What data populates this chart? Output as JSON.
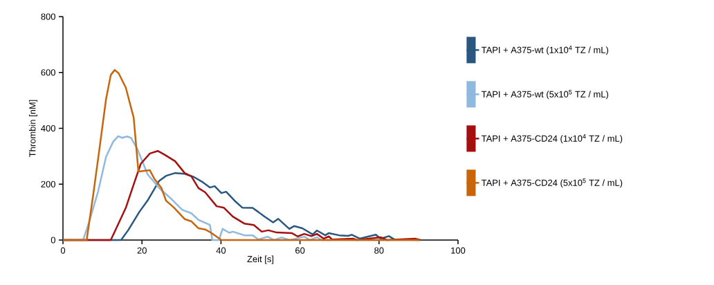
{
  "chart_data": {
    "type": "line",
    "xlabel": "Zeit [s]",
    "ylabel": "Thrombin [nM]",
    "xlim": [
      0,
      100
    ],
    "ylim": [
      0,
      800
    ],
    "xticks": [
      0,
      20,
      40,
      60,
      80,
      100
    ],
    "yticks": [
      0,
      200,
      400,
      600,
      800
    ],
    "legend": "right",
    "line_style": "solid",
    "series": [
      {
        "name": "TAPI + A375-wt (1x10$^{4}$ TZ / mL)",
        "color": "#2a5680",
        "x": [
          0,
          14.7,
          16.5,
          19.3,
          21.4,
          24.3,
          26.1,
          28.4,
          30.8,
          33.1,
          35.4,
          37.2,
          38.4,
          40.1,
          41.3,
          43.5,
          45.4,
          48,
          49.5,
          51,
          53.2,
          54.5,
          57.3,
          58.5,
          60.6,
          63.2,
          64.3,
          66.4,
          67.3,
          69.9,
          72.2,
          73.1,
          75.1,
          79.2,
          80.4,
          82.5,
          83.9,
          90.4
        ],
        "values": [
          0,
          0,
          35,
          100,
          141,
          211,
          230,
          240,
          237,
          226,
          207,
          188,
          193,
          168,
          173,
          140,
          116,
          115,
          100,
          84,
          63,
          76,
          40,
          50,
          42,
          20,
          34,
          17,
          25,
          17,
          15,
          19,
          5,
          19,
          5,
          14,
          2,
          0
        ]
      },
      {
        "name": "TAPI + A375-wt (5x10$^{5}$ TZ / mL)",
        "color": "#8fb9de",
        "x": [
          0,
          5.1,
          6.5,
          8.9,
          10.9,
          12.7,
          14,
          15,
          16.2,
          17.2,
          18.8,
          21.4,
          24.3,
          27.3,
          30.2,
          32.5,
          34.3,
          37.2,
          37.8,
          39.5,
          40.4,
          42.1,
          43,
          45.9,
          48,
          49.5,
          51.8,
          53.5,
          55.3,
          57.5,
          61.1,
          62.5,
          64.3,
          65.5,
          90.4
        ],
        "values": [
          0,
          0,
          59,
          174,
          298,
          352,
          372,
          366,
          371,
          366,
          327,
          236,
          187,
          149,
          108,
          96,
          72,
          54,
          0,
          0,
          40,
          26,
          30,
          17,
          17,
          2,
          12,
          0,
          9,
          0,
          12,
          0,
          10,
          0,
          0
        ]
      },
      {
        "name": "TAPI + A375-CD24 (1x10$^{4}$ TZ / mL)",
        "color": "#a50f0f",
        "x": [
          0,
          12.1,
          13.5,
          15.9,
          17.9,
          19.7,
          22,
          24,
          25.8,
          28.4,
          30.8,
          32.5,
          34.3,
          36,
          38.9,
          40.7,
          43,
          45.9,
          48.3,
          50.3,
          52,
          54.1,
          57.9,
          59.4,
          61.1,
          62.9,
          64.3,
          66,
          67.3,
          68.1,
          73.4,
          74.5,
          80.4,
          82,
          89.1,
          90.5
        ],
        "values": [
          0,
          0,
          42,
          115,
          199,
          273,
          310,
          319,
          305,
          282,
          240,
          228,
          186,
          171,
          121,
          116,
          84,
          59,
          54,
          30,
          35,
          27,
          25,
          13,
          22,
          14,
          22,
          5,
          13,
          2,
          5,
          0,
          10,
          0,
          5,
          0
        ]
      },
      {
        "name": "TAPI + A375-CD24 (5x10$^{5}$ TZ / mL)",
        "color": "#c8650a",
        "x": [
          0,
          6,
          7.7,
          9.2,
          10.9,
          12.1,
          13.1,
          14.1,
          15.9,
          17.9,
          19.1,
          22,
          23.1,
          24.9,
          26.1,
          28.1,
          30.8,
          32.5,
          34.3,
          36,
          37.5,
          40.1,
          90.4
        ],
        "values": [
          0,
          0,
          166,
          323,
          504,
          591,
          609,
          597,
          546,
          438,
          245,
          250,
          220,
          187,
          141,
          116,
          75,
          67,
          42,
          38,
          26,
          0,
          0
        ]
      }
    ]
  }
}
